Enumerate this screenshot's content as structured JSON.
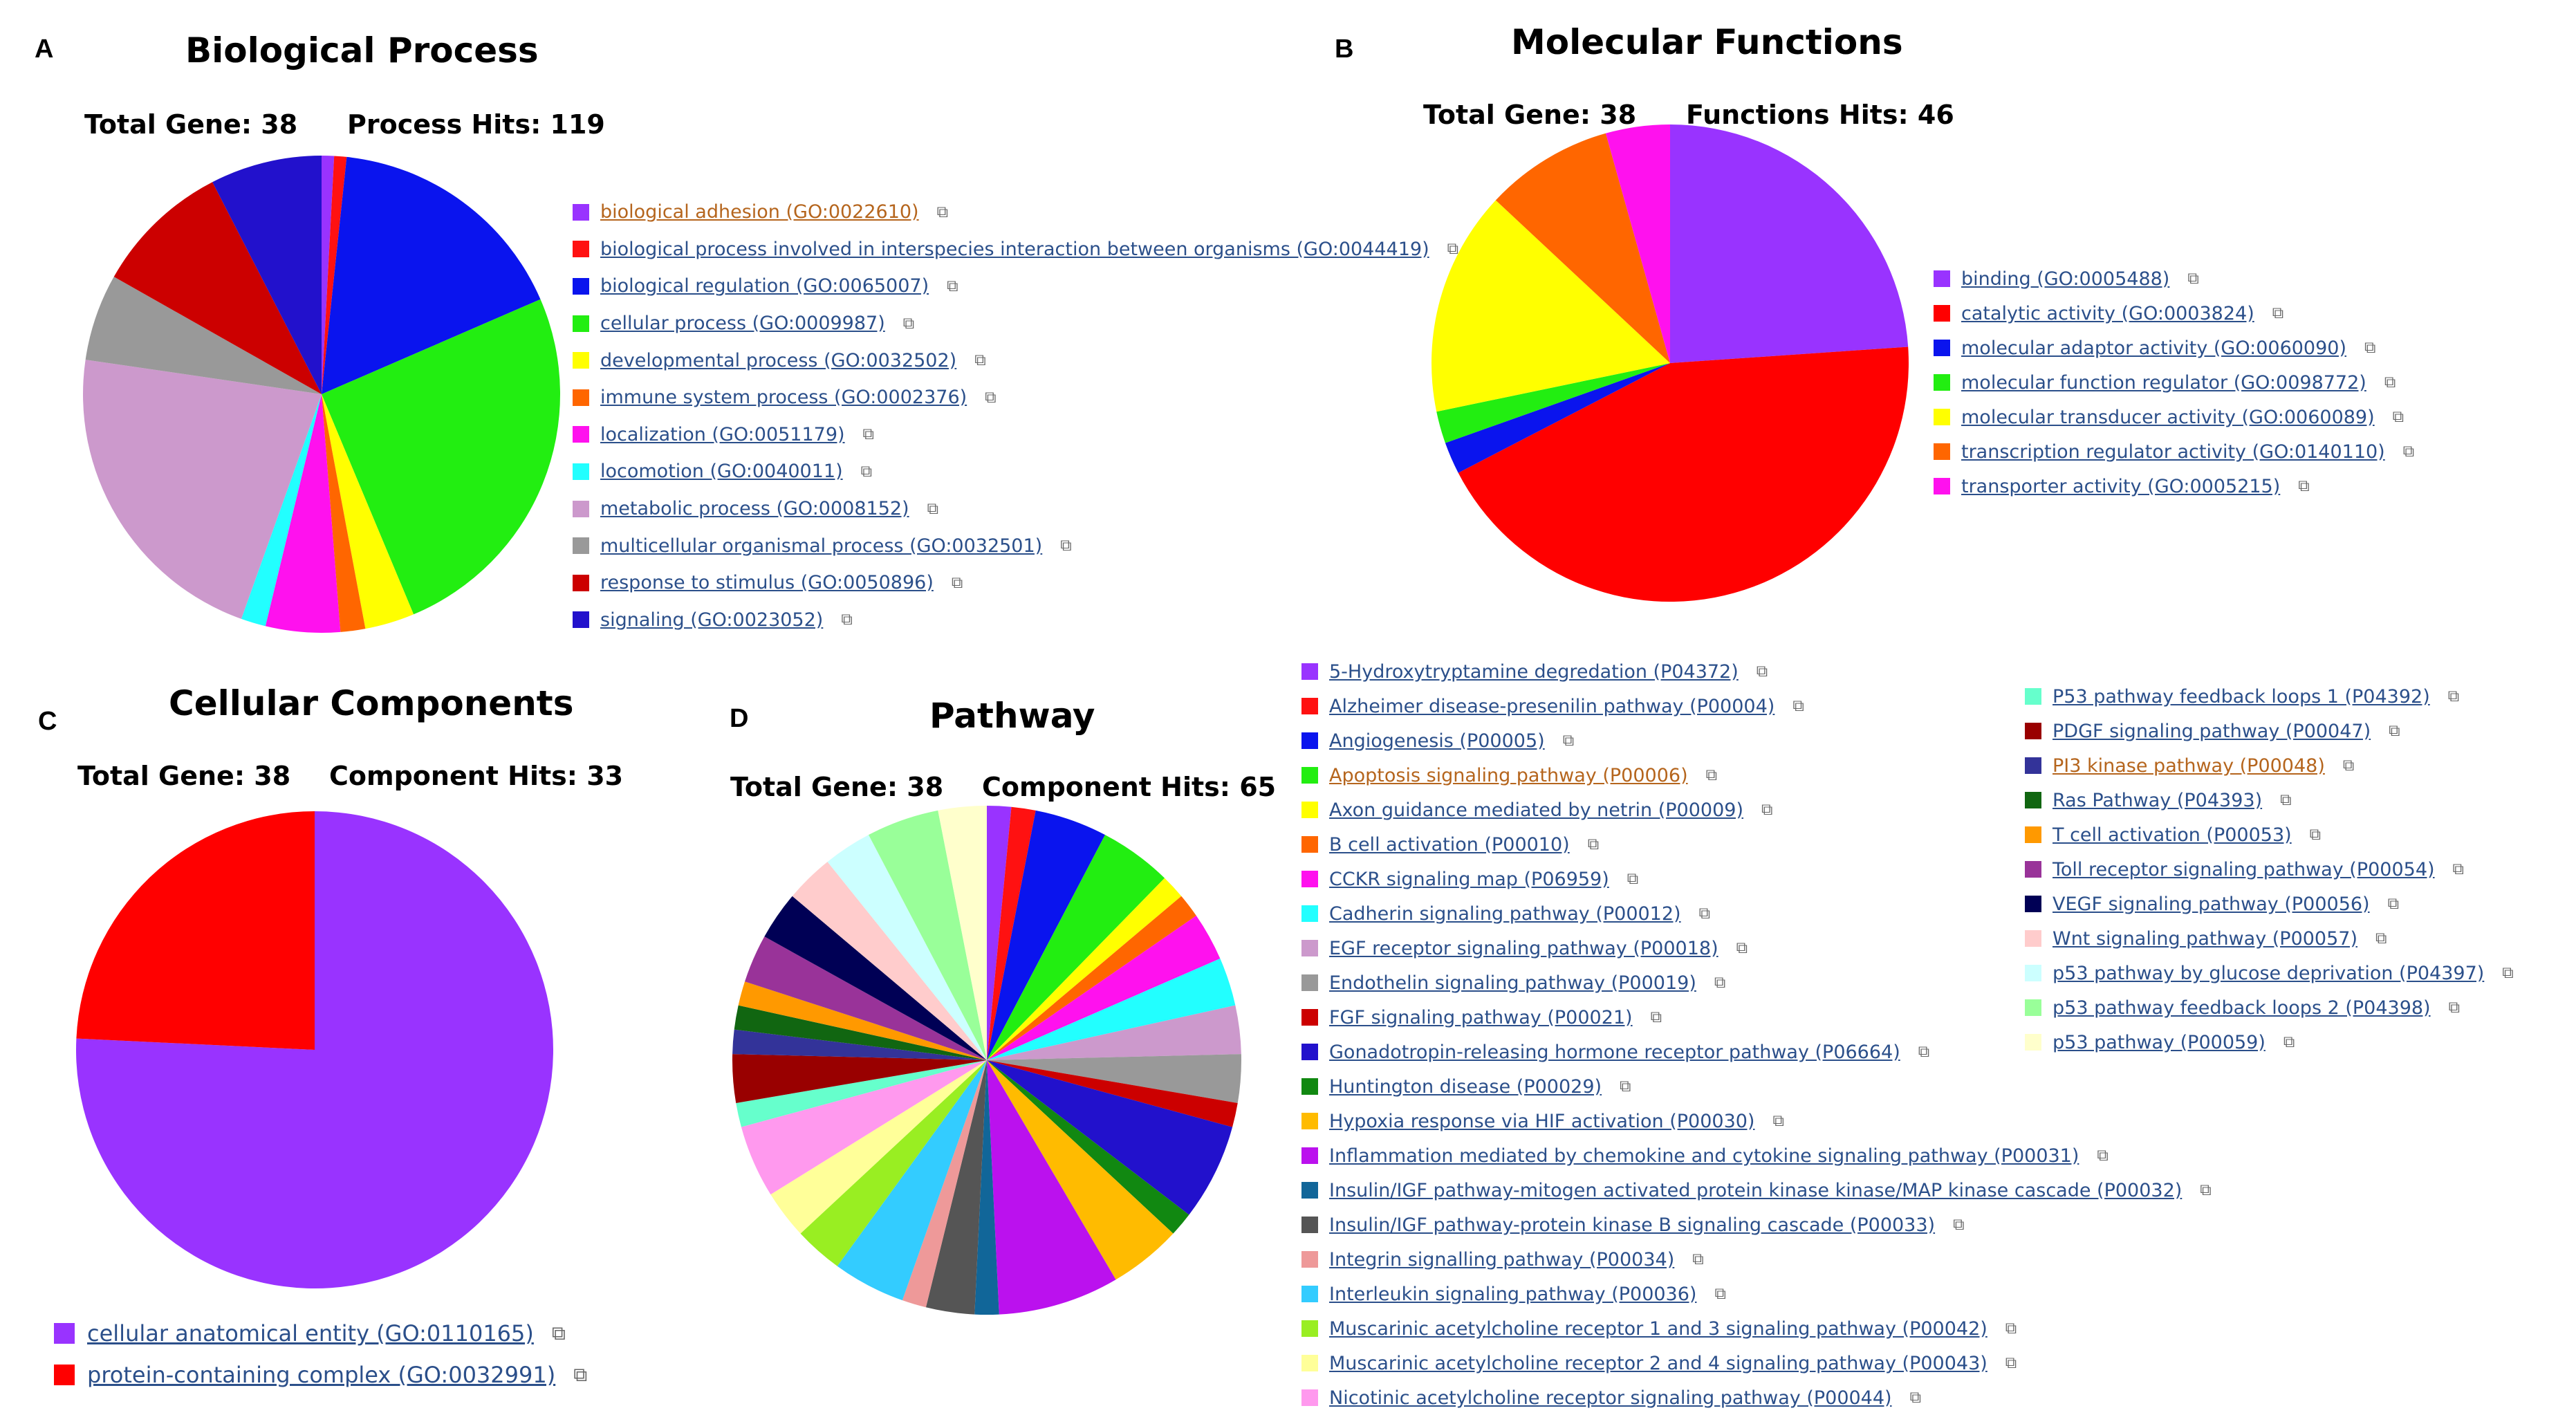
{
  "chart_data": [
    {
      "type": "pie",
      "panel": "A",
      "title": "Biological Process",
      "total_gene_label": "Total Gene: 38",
      "hits_label": "Process Hits: 119",
      "legend_external_icon": "external-link-icon",
      "slices": [
        {
          "label": "biological adhesion (GO:0022610)",
          "value": 1,
          "color": "#9933ff",
          "highlight": true
        },
        {
          "label": "biological process involved in interspecies interaction between organisms (GO:0044419)",
          "value": 1,
          "color": "#ff1111"
        },
        {
          "label": "biological regulation (GO:0065007)",
          "value": 20,
          "color": "#0a14ee"
        },
        {
          "label": "cellular process (GO:0009987)",
          "value": 30,
          "color": "#22ee11"
        },
        {
          "label": "developmental process (GO:0032502)",
          "value": 4,
          "color": "#ffff00"
        },
        {
          "label": "immune system process (GO:0002376)",
          "value": 2,
          "color": "#ff6600"
        },
        {
          "label": "localization (GO:0051179)",
          "value": 6,
          "color": "#ff11ee"
        },
        {
          "label": "locomotion (GO:0040011)",
          "value": 2,
          "color": "#22ffff"
        },
        {
          "label": "metabolic process (GO:0008152)",
          "value": 26,
          "color": "#cc99cc"
        },
        {
          "label": "multicellular organismal process (GO:0032501)",
          "value": 7,
          "color": "#999999"
        },
        {
          "label": "response to stimulus (GO:0050896)",
          "value": 11,
          "color": "#cc0000"
        },
        {
          "label": "signaling (GO:0023052)",
          "value": 9,
          "color": "#2211cc"
        }
      ]
    },
    {
      "type": "pie",
      "panel": "B",
      "title": "Molecular Functions",
      "total_gene_label": "Total Gene: 38",
      "hits_label": "Functions Hits: 46",
      "legend_external_icon": "external-link-icon",
      "slices": [
        {
          "label": "binding (GO:0005488)",
          "value": 11,
          "color": "#9933ff"
        },
        {
          "label": "catalytic activity (GO:0003824)",
          "value": 20,
          "color": "#ff0000"
        },
        {
          "label": "molecular adaptor activity (GO:0060090)",
          "value": 1,
          "color": "#0a14ee"
        },
        {
          "label": "molecular function regulator (GO:0098772)",
          "value": 1,
          "color": "#22ee11"
        },
        {
          "label": "molecular transducer activity (GO:0060089)",
          "value": 7,
          "color": "#ffff00"
        },
        {
          "label": "transcription regulator activity (GO:0140110)",
          "value": 4,
          "color": "#ff6600"
        },
        {
          "label": "transporter activity (GO:0005215)",
          "value": 2,
          "color": "#ff11ee"
        }
      ]
    },
    {
      "type": "pie",
      "panel": "C",
      "title": "Cellular Components",
      "total_gene_label": "Total Gene: 38",
      "hits_label": "Component Hits: 33",
      "legend_external_icon": "external-link-icon",
      "slices": [
        {
          "label": "cellular anatomical entity (GO:0110165)",
          "value": 25,
          "color": "#9933ff"
        },
        {
          "label": "protein-containing complex (GO:0032991)",
          "value": 8,
          "color": "#ff0000"
        }
      ]
    },
    {
      "type": "pie",
      "panel": "D",
      "title": "Pathway",
      "total_gene_label": "Total Gene: 38",
      "hits_label": "Component Hits: 65",
      "legend_external_icon": "external-link-icon",
      "slices": [
        {
          "label": "5-Hydroxytryptamine degredation (P04372)",
          "value": 1,
          "color": "#9933ff"
        },
        {
          "label": "Alzheimer disease-presenilin pathway (P00004)",
          "value": 1,
          "color": "#ff1111"
        },
        {
          "label": "Angiogenesis (P00005)",
          "value": 3,
          "color": "#0a14ee"
        },
        {
          "label": "Apoptosis signaling pathway (P00006)",
          "value": 3,
          "color": "#22ee11",
          "highlight": true
        },
        {
          "label": "Axon guidance mediated by netrin (P00009)",
          "value": 1,
          "color": "#ffff00"
        },
        {
          "label": "B cell activation (P00010)",
          "value": 1,
          "color": "#ff6600"
        },
        {
          "label": "CCKR signaling map (P06959)",
          "value": 2,
          "color": "#ff11ee"
        },
        {
          "label": "Cadherin signaling pathway (P00012)",
          "value": 2,
          "color": "#22ffff"
        },
        {
          "label": "EGF receptor signaling pathway (P00018)",
          "value": 2,
          "color": "#cc99cc"
        },
        {
          "label": "Endothelin signaling pathway (P00019)",
          "value": 2,
          "color": "#999999"
        },
        {
          "label": "FGF signaling pathway (P00021)",
          "value": 1,
          "color": "#cc0000"
        },
        {
          "label": "Gonadotropin-releasing hormone receptor pathway (P06664)",
          "value": 4,
          "color": "#2211cc"
        },
        {
          "label": "Huntington disease (P00029)",
          "value": 1,
          "color": "#118811"
        },
        {
          "label": "Hypoxia response via HIF activation (P00030)",
          "value": 3,
          "color": "#ffbb00"
        },
        {
          "label": "Inflammation mediated by chemokine and cytokine signaling pathway (P00031)",
          "value": 5,
          "color": "#bb11ee"
        },
        {
          "label": "Insulin/IGF pathway-mitogen activated protein kinase kinase/MAP kinase cascade (P00032)",
          "value": 1,
          "color": "#116699"
        },
        {
          "label": "Insulin/IGF pathway-protein kinase B signaling cascade (P00033)",
          "value": 2,
          "color": "#555555"
        },
        {
          "label": "Integrin signalling pathway (P00034)",
          "value": 1,
          "color": "#ee9999"
        },
        {
          "label": "Interleukin signaling pathway (P00036)",
          "value": 3,
          "color": "#33ccff"
        },
        {
          "label": "Muscarinic acetylcholine receptor 1 and 3 signaling pathway (P00042)",
          "value": 2,
          "color": "#99ee22"
        },
        {
          "label": "Muscarinic acetylcholine receptor 2 and 4 signaling pathway (P00043)",
          "value": 2,
          "color": "#ffff99"
        },
        {
          "label": "Nicotinic acetylcholine receptor signaling pathway (P00044)",
          "value": 3,
          "color": "#ff99ee"
        },
        {
          "label": "P53 pathway feedback loops 1 (P04392)",
          "value": 1,
          "color": "#66ffcc"
        },
        {
          "label": "PDGF signaling pathway (P00047)",
          "value": 2,
          "color": "#990000"
        },
        {
          "label": "PI3 kinase pathway (P00048)",
          "value": 1,
          "color": "#333399",
          "highlight": true
        },
        {
          "label": "Ras Pathway (P04393)",
          "value": 1,
          "color": "#116611"
        },
        {
          "label": "T cell activation (P00053)",
          "value": 1,
          "color": "#ff9900"
        },
        {
          "label": "Toll receptor signaling pathway (P00054)",
          "value": 2,
          "color": "#993399"
        },
        {
          "label": "VEGF signaling pathway (P00056)",
          "value": 2,
          "color": "#000055"
        },
        {
          "label": "Wnt signaling pathway (P00057)",
          "value": 2,
          "color": "#ffcccc"
        },
        {
          "label": "p53 pathway by glucose deprivation (P04397)",
          "value": 2,
          "color": "#ccffff"
        },
        {
          "label": "p53 pathway feedback loops 2 (P04398)",
          "value": 3,
          "color": "#99ff99"
        },
        {
          "label": "p53 pathway (P00059)",
          "value": 2,
          "color": "#ffffcc"
        }
      ]
    }
  ]
}
